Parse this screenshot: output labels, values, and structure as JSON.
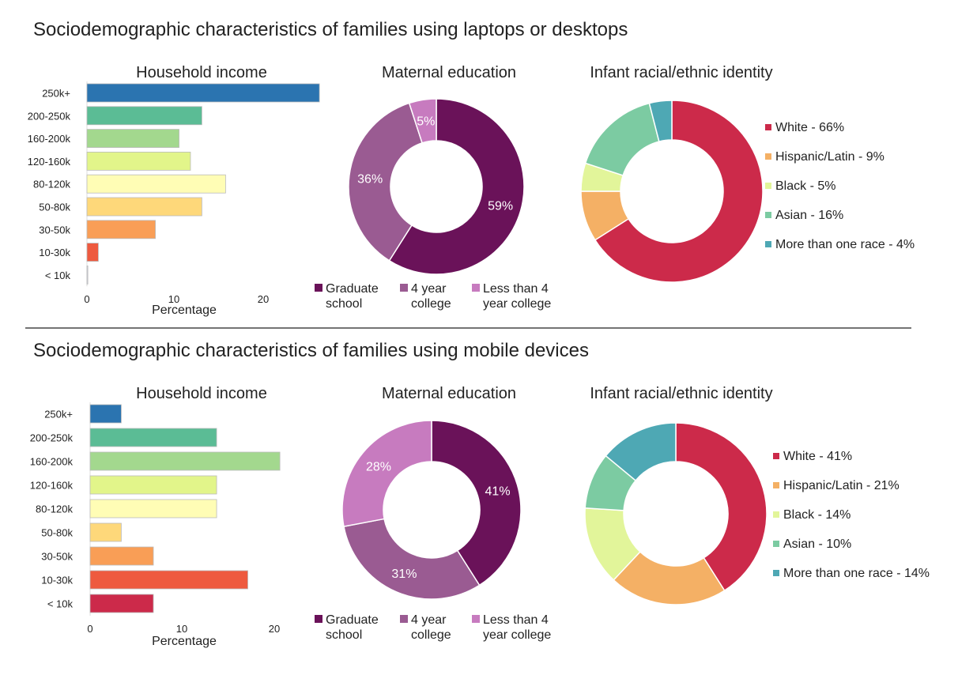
{
  "sections": [
    {
      "title": "Sociodemographic characteristics of families using laptops or desktops",
      "chart_data": [
        {
          "type": "bar",
          "orientation": "horizontal",
          "title": "Household income",
          "xlabel": "Percentage",
          "xticks": [
            "0",
            "10",
            "20"
          ],
          "xlim": [
            0,
            26
          ],
          "categories": [
            "250k+",
            "200-250k",
            "160-200k",
            "120-160k",
            "80-120k",
            "50-80k",
            "30-50k",
            "10-30k",
            "< 10k"
          ],
          "values": [
            26.5,
            13.1,
            10.5,
            11.8,
            15.8,
            13.1,
            7.8,
            1.3,
            0.1
          ],
          "colors": [
            "#2b74b0",
            "#5bbc95",
            "#a3d88e",
            "#e2f58a",
            "#fffdb5",
            "#fed87a",
            "#f99e56",
            "#ee5a3f",
            "#d1dcea"
          ]
        },
        {
          "type": "pie",
          "donut": true,
          "title": "Maternal education",
          "categories": [
            "Graduate school",
            "4 year college",
            "Less than 4 year college"
          ],
          "legend": [
            "Graduate\nschool",
            "4 year\ncollege",
            "Less than 4\nyear college"
          ],
          "values": [
            59,
            36,
            5
          ],
          "labels": [
            "59%",
            "36%",
            "5%"
          ],
          "colors": [
            "#6a1259",
            "#9a5b92",
            "#c77bbf"
          ],
          "legend_position": "bottom"
        },
        {
          "type": "pie",
          "donut": true,
          "title": "Infant racial/ethnic identity",
          "categories": [
            "White",
            "Hispanic/Latin",
            "Black",
            "Asian",
            "More than one race"
          ],
          "legend": [
            "White - 66%",
            "Hispanic/Latin - 9%",
            "Black - 5%",
            "Asian - 16%",
            "More than one race - 4%"
          ],
          "values": [
            66,
            9,
            5,
            16,
            4
          ],
          "colors": [
            "#cc2a4a",
            "#f4b065",
            "#e2f59a",
            "#7ccba2",
            "#4ea8b4"
          ],
          "legend_position": "right"
        }
      ]
    },
    {
      "title": "Sociodemographic characteristics of families using mobile devices",
      "chart_data": [
        {
          "type": "bar",
          "orientation": "horizontal",
          "title": "Household income",
          "xlabel": "Percentage",
          "xticks": [
            "0",
            "10",
            "20"
          ],
          "xlim": [
            0,
            20.7
          ],
          "categories": [
            "250k+",
            "200-250k",
            "160-200k",
            "120-160k",
            "80-120k",
            "50-80k",
            "30-50k",
            "10-30k",
            "< 10k"
          ],
          "values": [
            3.4,
            13.8,
            20.7,
            13.8,
            13.8,
            3.4,
            6.9,
            17.2,
            6.9
          ],
          "colors": [
            "#2b74b0",
            "#5bbc95",
            "#a3d88e",
            "#e2f58a",
            "#fffdb5",
            "#fed87a",
            "#f99e56",
            "#ee5a3f",
            "#cc2a4a"
          ]
        },
        {
          "type": "pie",
          "donut": true,
          "title": "Maternal education",
          "categories": [
            "Graduate school",
            "4 year college",
            "Less than 4 year college"
          ],
          "legend": [
            "Graduate\nschool",
            "4 year\ncollege",
            "Less than 4\nyear college"
          ],
          "values": [
            41,
            31,
            28
          ],
          "labels": [
            "41%",
            "31%",
            "28%"
          ],
          "colors": [
            "#6a1259",
            "#9a5b92",
            "#c77bbf"
          ],
          "legend_position": "bottom"
        },
        {
          "type": "pie",
          "donut": true,
          "title": "Infant racial/ethnic identity",
          "categories": [
            "White",
            "Hispanic/Latin",
            "Black",
            "Asian",
            "More than one race"
          ],
          "legend": [
            "White - 41%",
            "Hispanic/Latin - 21%",
            "Black - 14%",
            "Asian - 10%",
            "More than one race - 14%"
          ],
          "values": [
            41,
            21,
            14,
            10,
            14
          ],
          "colors": [
            "#cc2a4a",
            "#f4b065",
            "#e2f59a",
            "#7ccba2",
            "#4ea8b4"
          ],
          "legend_position": "right"
        }
      ]
    }
  ]
}
